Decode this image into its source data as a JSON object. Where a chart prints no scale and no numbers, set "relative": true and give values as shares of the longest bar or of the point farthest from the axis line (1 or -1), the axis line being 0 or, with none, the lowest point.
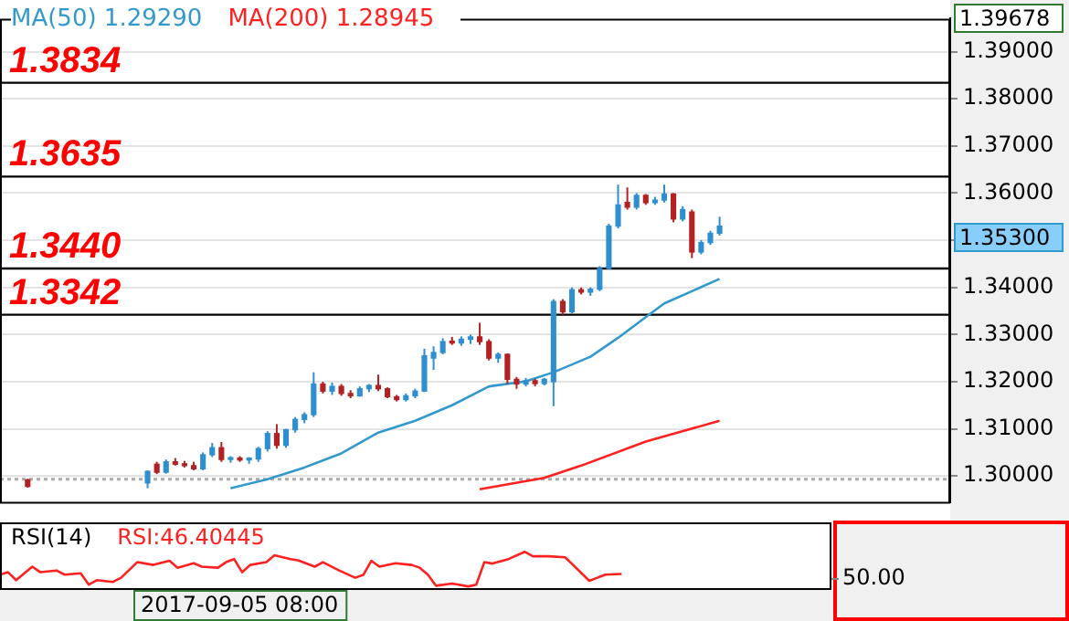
{
  "chart_data": [
    {
      "type": "candlestick",
      "categories": [
        null,
        null,
        null,
        null,
        null,
        null,
        null,
        null,
        null,
        null,
        null,
        null,
        null,
        null,
        null,
        null,
        null,
        null,
        null,
        null,
        null,
        null,
        null,
        null,
        null,
        null,
        null,
        null,
        null,
        null,
        null,
        null,
        null,
        null,
        null,
        null,
        null,
        null,
        null,
        null,
        null,
        null,
        null,
        null,
        null,
        null,
        null,
        null,
        null,
        null,
        null,
        null,
        null,
        null,
        null,
        null,
        null,
        null,
        null,
        null,
        null,
        null,
        null,
        null,
        null,
        null,
        null,
        null,
        null,
        null,
        null,
        null,
        null,
        null,
        null,
        null,
        null,
        null,
        null,
        null,
        null,
        null,
        null,
        null,
        null,
        null,
        null,
        null,
        null,
        null,
        null,
        null,
        null,
        null,
        null,
        null,
        null,
        null,
        null,
        null,
        null,
        null,
        null,
        null
      ],
      "ohlc": [
        null,
        null,
        null,
        [
          1.2992,
          1.2994,
          1.2975,
          1.2978
        ],
        null,
        null,
        null,
        null,
        null,
        null,
        null,
        null,
        null,
        null,
        null,
        null,
        [
          1.2985,
          1.3012,
          1.2974,
          1.301
        ],
        [
          1.3025,
          1.303,
          1.3004,
          1.3008
        ],
        [
          1.3008,
          1.3035,
          1.3005,
          1.303
        ],
        [
          1.303,
          1.3038,
          1.3022,
          1.3025
        ],
        [
          1.3025,
          1.3032,
          1.3018,
          1.3022
        ],
        [
          1.3022,
          1.303,
          1.3012,
          1.3015
        ],
        [
          1.3015,
          1.305,
          1.3012,
          1.3045
        ],
        [
          1.3045,
          1.307,
          1.304,
          1.306
        ],
        [
          1.306,
          1.3072,
          1.303,
          1.3035
        ],
        [
          1.3035,
          1.3042,
          1.3028,
          1.3038
        ],
        [
          1.3038,
          1.3042,
          1.303,
          1.3034
        ],
        [
          1.3034,
          1.304,
          1.3026,
          1.3036
        ],
        [
          1.3036,
          1.3062,
          1.303,
          1.3058
        ],
        [
          1.3058,
          1.3095,
          1.3052,
          1.309
        ],
        [
          1.309,
          1.311,
          1.3058,
          1.3065
        ],
        [
          1.3065,
          1.31,
          1.306,
          1.3098
        ],
        [
          1.3098,
          1.3125,
          1.3092,
          1.312
        ],
        [
          1.312,
          1.3135,
          1.3112,
          1.313
        ],
        [
          1.313,
          1.322,
          1.3125,
          1.3195
        ],
        [
          1.3195,
          1.32,
          1.3175,
          1.318
        ],
        [
          1.318,
          1.3198,
          1.3172,
          1.319
        ],
        [
          1.319,
          1.3195,
          1.317,
          1.3175
        ],
        [
          1.3175,
          1.3182,
          1.3165,
          1.317
        ],
        [
          1.317,
          1.319,
          1.3168,
          1.3185
        ],
        [
          1.3185,
          1.3195,
          1.3178,
          1.3192
        ],
        [
          1.3192,
          1.3215,
          1.318,
          1.3185
        ],
        [
          1.3185,
          1.3188,
          1.3165,
          1.3168
        ],
        [
          1.3168,
          1.3172,
          1.3158,
          1.3162
        ],
        [
          1.3162,
          1.3175,
          1.3158,
          1.317
        ],
        [
          1.317,
          1.3185,
          1.3165,
          1.318
        ],
        [
          1.318,
          1.327,
          1.3178,
          1.3255
        ],
        [
          1.325,
          1.3275,
          1.3225,
          1.3262
        ],
        [
          1.3262,
          1.3292,
          1.3258,
          1.3285
        ],
        [
          1.3285,
          1.3295,
          1.3278,
          1.3282
        ],
        [
          1.3282,
          1.3296,
          1.3276,
          1.329
        ],
        [
          1.329,
          1.33,
          1.328,
          1.3295
        ],
        [
          1.3295,
          1.3325,
          1.3278,
          1.3285
        ],
        [
          1.3285,
          1.329,
          1.3245,
          1.325
        ],
        [
          1.325,
          1.3262,
          1.324,
          1.3258
        ],
        [
          1.3258,
          1.326,
          1.3195,
          1.3205
        ],
        [
          1.3205,
          1.321,
          1.3185,
          1.3195
        ],
        [
          1.3195,
          1.3208,
          1.319,
          1.3202
        ],
        [
          1.3202,
          1.3206,
          1.319,
          1.3196
        ],
        [
          1.3196,
          1.3208,
          1.3192,
          1.3205
        ],
        [
          1.32,
          1.3375,
          1.3148,
          1.337
        ],
        [
          1.337,
          1.3375,
          1.3342,
          1.3348
        ],
        [
          1.3348,
          1.34,
          1.3345,
          1.3395
        ],
        [
          1.3395,
          1.34,
          1.3385,
          1.339
        ],
        [
          1.339,
          1.34,
          1.3382,
          1.3396
        ],
        [
          1.3396,
          1.3445,
          1.3392,
          1.344
        ],
        [
          1.344,
          1.3535,
          1.3438,
          1.353
        ],
        [
          1.353,
          1.3618,
          1.3525,
          1.3575
        ],
        [
          1.358,
          1.3612,
          1.3565,
          1.357
        ],
        [
          1.357,
          1.36,
          1.3565,
          1.3595
        ],
        [
          1.3595,
          1.3598,
          1.3575,
          1.358
        ],
        [
          1.358,
          1.3592,
          1.3575,
          1.3585
        ],
        [
          1.3585,
          1.3618,
          1.358,
          1.3598
        ],
        [
          1.3598,
          1.36,
          1.3538,
          1.3545
        ],
        [
          1.3545,
          1.3572,
          1.354,
          1.3565
        ],
        [
          1.356,
          1.3565,
          1.3462,
          1.3475
        ],
        [
          1.3475,
          1.35,
          1.347,
          1.3495
        ],
        [
          1.3495,
          1.352,
          1.349,
          1.3515
        ],
        [
          1.3515,
          1.355,
          1.351,
          1.353
        ],
        null,
        null,
        null,
        null,
        null,
        null,
        null,
        null,
        null,
        null,
        null,
        null,
        null,
        null,
        null,
        null,
        null,
        null,
        null,
        null,
        null,
        null,
        null,
        null,
        null
      ],
      "colors": [
        null,
        null,
        null,
        "#b22222",
        null,
        null,
        null,
        null,
        null,
        null,
        null,
        null,
        null,
        null,
        null,
        null,
        "#2f8fce",
        "#b22222",
        "#2f8fce",
        "#b22222",
        "#b22222",
        "#b22222",
        "#2f8fce",
        "#2f8fce",
        "#b22222",
        "#2f8fce",
        "#b22222",
        "#2f8fce",
        "#2f8fce",
        "#2f8fce",
        "#b22222",
        "#2f8fce",
        "#2f8fce",
        "#2f8fce",
        "#2f8fce",
        "#b22222",
        "#2f8fce",
        "#b22222",
        "#b22222",
        "#2f8fce",
        "#2f8fce",
        "#b22222",
        "#b22222",
        "#b22222",
        "#2f8fce",
        "#2f8fce",
        "#2f8fce",
        "#2f8fce",
        "#2f8fce",
        "#b22222",
        "#2f8fce",
        "#2f8fce",
        "#b22222",
        "#b22222",
        "#2f8fce",
        "#b22222",
        "#b22222",
        "#2f8fce",
        "#b22222",
        "#2f8fce",
        "#2f8fce",
        "#b22222",
        "#2f8fce",
        "#b22222",
        "#2f8fce",
        "#2f8fce",
        "#2f8fce",
        "#2f8fce",
        "#b22222",
        "#2f8fce",
        "#b22222",
        "#2f8fce",
        "#2f8fce",
        "#b22222",
        "#2f8fce",
        "#b22222",
        "#2f8fce",
        "#2f8fce",
        "#2f8fce",
        null,
        null,
        null,
        null,
        null,
        null,
        null,
        null,
        null,
        null,
        null,
        null,
        null,
        null,
        null,
        null,
        null,
        null,
        null,
        null,
        null,
        null,
        null,
        null,
        null
      ],
      "series": [
        {
          "name": "MA(50) 1.29290",
          "type": "line",
          "color": "#3399cc",
          "values": [
            null,
            null,
            null,
            null,
            null,
            null,
            null,
            null,
            null,
            null,
            null,
            null,
            null,
            null,
            null,
            null,
            null,
            null,
            null,
            null,
            null,
            null,
            null,
            null,
            null,
            1.2974,
            null,
            null,
            null,
            1.2993,
            null,
            null,
            null,
            1.3018,
            null,
            null,
            null,
            1.3048,
            null,
            null,
            null,
            1.3092,
            null,
            null,
            null,
            1.3117,
            null,
            null,
            null,
            1.315,
            null,
            null,
            null,
            1.319,
            null,
            null,
            null,
            1.3201,
            null,
            null,
            1.322,
            null,
            null,
            null,
            1.3253,
            null,
            null,
            1.3293,
            null,
            null,
            1.3337,
            null,
            1.3366,
            null,
            null,
            1.3392,
            null,
            null,
            1.3418,
            null,
            null,
            null,
            null,
            null,
            null,
            null,
            null,
            null,
            null,
            null,
            null,
            null,
            null,
            null,
            null,
            null,
            null,
            null,
            null,
            null,
            null,
            null,
            null,
            null
          ]
        },
        {
          "name": "MA(200) 1.28945",
          "type": "line",
          "color": "#ff2020",
          "values": [
            null,
            null,
            null,
            null,
            null,
            null,
            null,
            null,
            null,
            null,
            null,
            null,
            null,
            null,
            null,
            null,
            null,
            null,
            null,
            null,
            null,
            null,
            null,
            null,
            null,
            null,
            null,
            null,
            null,
            null,
            null,
            null,
            null,
            null,
            null,
            null,
            null,
            null,
            null,
            null,
            null,
            null,
            null,
            null,
            null,
            null,
            null,
            null,
            null,
            null,
            null,
            null,
            1.2972,
            null,
            null,
            null,
            null,
            null,
            null,
            1.2996,
            null,
            null,
            null,
            1.3022,
            null,
            null,
            null,
            null,
            null,
            null,
            1.3073,
            null,
            null,
            null,
            null,
            null,
            null,
            null,
            1.3117,
            null,
            null,
            null,
            null,
            null,
            null,
            null,
            null,
            null,
            null,
            null,
            null,
            null,
            null,
            null,
            null,
            null,
            null,
            null,
            null,
            null,
            null,
            null,
            null,
            null
          ]
        }
      ],
      "ylim": [
        1.2945,
        1.397
      ],
      "yticks": [
        {
          "value": 1.3,
          "label": "1.30000"
        },
        {
          "value": 1.31,
          "label": "1.31000"
        },
        {
          "value": 1.32,
          "label": "1.32000"
        },
        {
          "value": 1.33,
          "label": "1.33000"
        },
        {
          "value": 1.34,
          "label": "1.34000"
        },
        {
          "value": 1.35,
          "label": null
        },
        {
          "value": 1.36,
          "label": "1.36000"
        },
        {
          "value": 1.37,
          "label": "1.37000"
        },
        {
          "value": 1.38,
          "label": "1.38000"
        },
        {
          "value": 1.39,
          "label": "1.39000"
        }
      ],
      "ref_lines": [
        {
          "axis": "y",
          "value": 1.3834,
          "label": "1.3834",
          "color": "#000000"
        },
        {
          "axis": "y",
          "value": 1.3635,
          "label": "1.3635",
          "color": "#000000"
        },
        {
          "axis": "y",
          "value": 1.344,
          "label": "1.3440",
          "color": "#000000"
        },
        {
          "axis": "y",
          "value": 1.3342,
          "label": "1.3342",
          "color": "#000000"
        },
        {
          "axis": "y",
          "value": 1.2993,
          "color": "#aaaaaa",
          "line_style": "dotted"
        }
      ],
      "annotations": [
        "1.35300",
        "1.39678"
      ],
      "grid": "y",
      "legend": "top left",
      "tick_labels": "y",
      "marker": "none"
    },
    {
      "type": "line",
      "title": "RSI(14)",
      "categories": [
        null,
        null,
        null,
        null,
        null,
        null,
        null,
        null,
        null,
        null,
        null,
        null,
        null,
        null,
        null,
        null,
        null,
        null,
        null,
        null,
        null,
        null,
        null,
        null,
        null,
        null,
        null,
        null,
        null,
        null,
        null,
        null,
        null,
        null,
        null,
        null,
        null,
        null,
        null,
        null,
        null,
        null,
        null,
        null,
        null,
        null,
        null,
        null,
        null,
        null,
        null,
        null,
        null,
        null,
        null,
        null,
        null,
        null,
        null,
        null,
        null,
        null,
        null,
        null,
        null,
        null,
        null,
        null,
        null,
        null,
        null,
        null,
        null,
        null,
        null,
        null,
        null,
        null,
        null,
        null,
        null,
        null,
        null,
        null,
        null,
        null,
        null,
        null,
        null,
        null,
        null,
        null,
        null,
        null,
        null,
        null,
        null,
        null,
        null,
        null,
        null,
        null,
        null,
        null
      ],
      "series": [
        {
          "name": "RSI:46.40445",
          "color": "#ff2020",
          "values": [
            0.34,
            0.41,
            0.18,
            null,
            0.57,
            0.41,
            null,
            0.46,
            0.34,
            null,
            0.38,
            0.05,
            0.18,
            null,
            0.13,
            0.25,
            null,
            0.7,
            null,
            0.62,
            null,
            0.74,
            0.54,
            null,
            0.67,
            0.57,
            null,
            0.54,
            0.7,
            0.79,
            0.41,
            0.62,
            null,
            0.7,
            0.9,
            null,
            0.79,
            0.75,
            null,
            0.57,
            0.7,
            null,
            0.46,
            null,
            0.25,
            0.33,
            0.74,
            0.57,
            null,
            0.67,
            null,
            0.62,
            0.54,
            0.34,
            0.02,
            null,
            0.08,
            null,
            0,
            0.05,
            0.7,
            0.66,
            null,
            0.79,
            null,
            1,
            0.87,
            null,
            0.87,
            null,
            0.84,
            0.62,
            null,
            0.16,
            0.25,
            0.34,
            null,
            0.36,
            null,
            null,
            null,
            null,
            null,
            null,
            null,
            null,
            null,
            null,
            null,
            null,
            null,
            null,
            null,
            null,
            null,
            null,
            null,
            null,
            null,
            null,
            null,
            null,
            null,
            null
          ]
        }
      ],
      "relative": true,
      "legend": "top left",
      "tick_labels": false,
      "marker": "none",
      "annotations": [
        "50.00",
        "2017-09-05 08:00"
      ]
    }
  ]
}
